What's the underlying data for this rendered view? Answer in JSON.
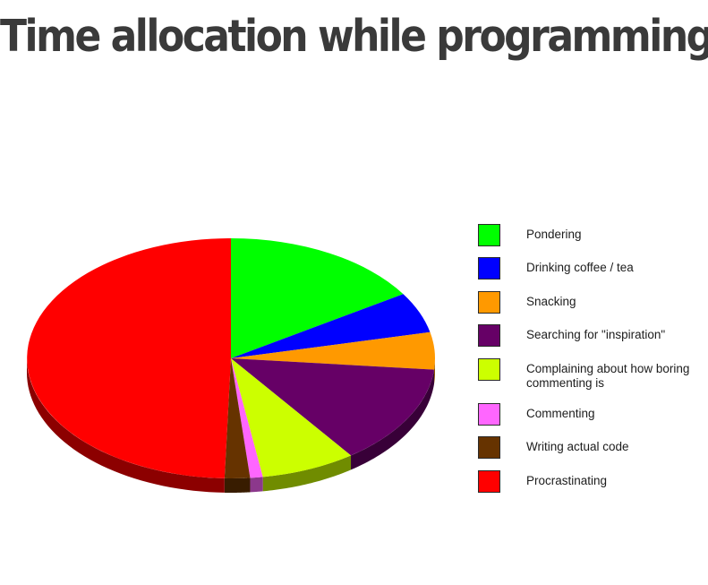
{
  "chart_data": {
    "type": "pie",
    "title": "Time allocation while programming",
    "slices": [
      {
        "label": "Pondering",
        "value": 16,
        "color": "#00ff00"
      },
      {
        "label": "Drinking coffee / tea",
        "value": 5.5,
        "color": "#0000ff"
      },
      {
        "label": "Snacking",
        "value": 5,
        "color": "#ff9900"
      },
      {
        "label": "Searching for \"inspiration\"",
        "value": 13.5,
        "color": "#660066"
      },
      {
        "label": "Complaining about how boring commenting is",
        "value": 7.5,
        "color": "#ccff00"
      },
      {
        "label": "Commenting",
        "value": 1,
        "color": "#ff66ff"
      },
      {
        "label": "Writing actual code",
        "value": 2,
        "color": "#663300"
      },
      {
        "label": "Procrastinating",
        "value": 49.5,
        "color": "#ff0000"
      }
    ],
    "legend_placement": "right",
    "style": "3d"
  }
}
